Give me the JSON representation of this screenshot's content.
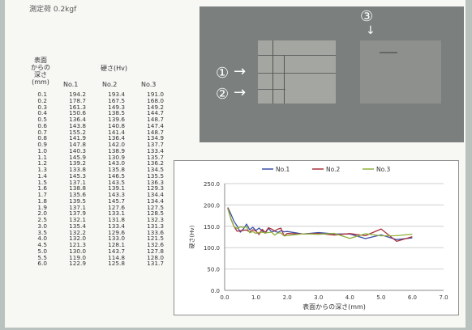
{
  "header_text": "測定荷 0.2kgf",
  "table": {
    "col_header_depth": [
      "表面",
      "からの",
      "深さ",
      "(mm)"
    ],
    "col_header_hardness": "硬さ(Hv)",
    "series_headers": [
      "No.1",
      "No.2",
      "No.3"
    ],
    "rows": [
      [
        "0.1",
        "194.2",
        "193.4",
        "191.0"
      ],
      [
        "0.2",
        "178.7",
        "167.5",
        "168.0"
      ],
      [
        "0.3",
        "161.3",
        "149.3",
        "149.2"
      ],
      [
        "0.4",
        "150.6",
        "138.5",
        "144.7"
      ],
      [
        "0.5",
        "136.4",
        "139.6",
        "148.7"
      ],
      [
        "0.6",
        "143.8",
        "140.8",
        "147.4"
      ],
      [
        "0.7",
        "155.2",
        "141.4",
        "148.7"
      ],
      [
        "0.8",
        "141.9",
        "136.4",
        "134.9"
      ],
      [
        "0.9",
        "147.8",
        "142.0",
        "137.7"
      ],
      [
        "1.0",
        "140.3",
        "138.9",
        "133.4"
      ],
      [
        "1.1",
        "145.9",
        "130.9",
        "135.7"
      ],
      [
        "1.2",
        "139.2",
        "143.0",
        "136.2"
      ],
      [
        "1.3",
        "133.8",
        "135.8",
        "134.5"
      ],
      [
        "1.4",
        "145.3",
        "146.5",
        "135.5"
      ],
      [
        "1.5",
        "137.1",
        "143.5",
        "136.3"
      ],
      [
        "1.6",
        "138.8",
        "139.1",
        "129.3"
      ],
      [
        "1.7",
        "135.6",
        "143.3",
        "134.4"
      ],
      [
        "1.8",
        "139.5",
        "145.7",
        "134.4"
      ],
      [
        "1.9",
        "137.1",
        "127.6",
        "127.5"
      ],
      [
        "2.0",
        "137.9",
        "133.1",
        "128.5"
      ],
      [
        "2.5",
        "132.1",
        "131.8",
        "132.3"
      ],
      [
        "3.0",
        "135.4",
        "133.4",
        "131.3"
      ],
      [
        "3.5",
        "132.2",
        "129.6",
        "133.6"
      ],
      [
        "4.0",
        "132.0",
        "133.0",
        "121.5"
      ],
      [
        "4.5",
        "121.3",
        "128.1",
        "132.6"
      ],
      [
        "5.0",
        "130.0",
        "143.7",
        "127.8"
      ],
      [
        "5.5",
        "119.0",
        "114.8",
        "128.0"
      ],
      [
        "6.0",
        "122.9",
        "125.8",
        "131.7"
      ]
    ]
  },
  "photo": {
    "callouts": [
      "①",
      "②",
      "③"
    ],
    "marker_arrows": [
      "→",
      "→"
    ]
  },
  "chart_data": {
    "type": "line",
    "x": [
      0.1,
      0.2,
      0.3,
      0.4,
      0.5,
      0.6,
      0.7,
      0.8,
      0.9,
      1.0,
      1.1,
      1.2,
      1.3,
      1.4,
      1.5,
      1.6,
      1.7,
      1.8,
      1.9,
      2.0,
      2.5,
      3.0,
      3.5,
      4.0,
      4.5,
      5.0,
      5.5,
      6.0
    ],
    "series": [
      {
        "name": "No.1",
        "color": "#3b4fa8",
        "values": [
          194.2,
          178.7,
          161.3,
          150.6,
          136.4,
          143.8,
          155.2,
          141.9,
          147.8,
          140.3,
          145.9,
          139.2,
          133.8,
          145.3,
          137.1,
          138.8,
          135.6,
          139.5,
          137.1,
          137.9,
          132.1,
          135.4,
          132.2,
          132.0,
          121.3,
          130.0,
          119.0,
          122.9
        ]
      },
      {
        "name": "No.2",
        "color": "#a8323a",
        "values": [
          193.4,
          167.5,
          149.3,
          138.5,
          139.6,
          140.8,
          141.4,
          136.4,
          142.0,
          138.9,
          130.9,
          143.0,
          135.8,
          146.5,
          143.5,
          139.1,
          143.3,
          145.7,
          127.6,
          133.1,
          131.8,
          133.4,
          129.6,
          133.0,
          128.1,
          143.7,
          114.8,
          125.8
        ]
      },
      {
        "name": "No.3",
        "color": "#8fb03a",
        "values": [
          191.0,
          168.0,
          149.2,
          144.7,
          148.7,
          147.4,
          148.7,
          134.9,
          137.7,
          133.4,
          135.7,
          136.2,
          134.5,
          135.5,
          136.3,
          129.3,
          134.4,
          134.4,
          127.5,
          128.5,
          132.3,
          131.3,
          133.6,
          121.5,
          132.6,
          127.8,
          128.0,
          131.7
        ]
      }
    ],
    "xlabel": "表面からの深さ(mm)",
    "ylabel": "硬さ(Hv)",
    "xlim": [
      0,
      7
    ],
    "ylim": [
      0,
      250
    ],
    "xticks": [
      "0.0",
      "1.0",
      "2.0",
      "3.0",
      "4.0",
      "5.0",
      "6.0",
      "7.0"
    ],
    "yticks": [
      "0.0",
      "50.0",
      "100.0",
      "150.0",
      "200.0",
      "250.0"
    ],
    "grid": true,
    "legend": "top"
  }
}
